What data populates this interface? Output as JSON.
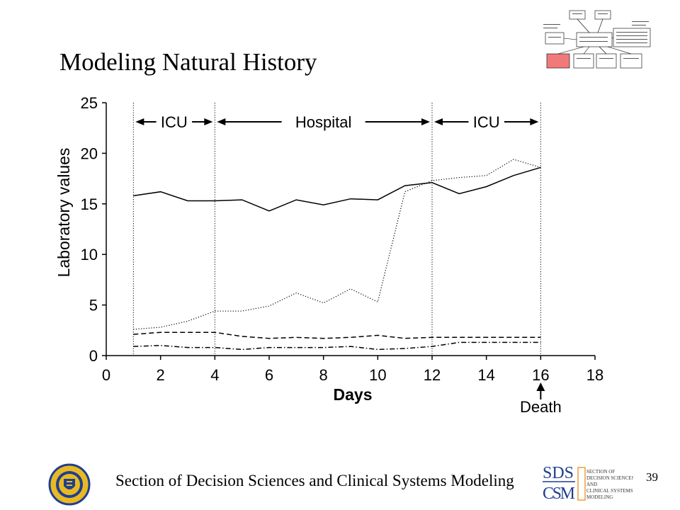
{
  "slide": {
    "title": "Modeling Natural History",
    "footer": "Section of Decision Sciences and Clinical Systems Modeling",
    "page_number": "39"
  },
  "logo": {
    "sds": "SDS",
    "csm": "CSM",
    "lines": [
      "SECTION OF",
      "DECISION SCIENCES",
      "AND",
      "CLINICAL SYSTEMS",
      "MODELING"
    ]
  },
  "colors": {
    "highlight_box": "#f07a7a",
    "seal_gold": "#e8b923",
    "seal_blue": "#1f3f8f",
    "logo_blue": "#1f3f8f",
    "logo_orange": "#e8a13a"
  },
  "chart_data": {
    "type": "line",
    "title": "",
    "xlabel": "Days",
    "ylabel": "Laboratory values",
    "xlim": [
      0,
      18
    ],
    "ylim": [
      0,
      25
    ],
    "xticks": [
      0,
      2,
      4,
      6,
      8,
      10,
      12,
      14,
      16,
      18
    ],
    "yticks": [
      0,
      5,
      10,
      15,
      20,
      25
    ],
    "grid": false,
    "legend": "none",
    "x": [
      1,
      2,
      3,
      4,
      5,
      6,
      7,
      8,
      9,
      10,
      11,
      12,
      13,
      14,
      15,
      16
    ],
    "series": [
      {
        "style": "solid",
        "values": [
          15.8,
          16.2,
          15.3,
          15.3,
          15.4,
          14.3,
          15.4,
          14.9,
          15.5,
          15.4,
          16.8,
          17.1,
          16.0,
          16.7,
          17.8,
          18.6
        ]
      },
      {
        "style": "dotted",
        "values": [
          2.6,
          2.8,
          3.4,
          4.4,
          4.4,
          4.9,
          6.2,
          5.2,
          6.6,
          5.3,
          16.2,
          17.3,
          17.6,
          17.8,
          19.4,
          18.6
        ]
      },
      {
        "style": "dashed",
        "values": [
          2.1,
          2.3,
          2.3,
          2.3,
          1.9,
          1.7,
          1.8,
          1.7,
          1.8,
          2.0,
          1.7,
          1.8,
          1.8,
          1.8,
          1.8,
          1.8
        ]
      },
      {
        "style": "dash-dot",
        "values": [
          0.9,
          1.0,
          0.8,
          0.8,
          0.6,
          0.8,
          0.8,
          0.8,
          0.9,
          0.6,
          0.7,
          0.9,
          1.3,
          1.3,
          1.3,
          1.3
        ]
      }
    ],
    "phase_boundaries": [
      1,
      4,
      12,
      16
    ],
    "phases": [
      {
        "label": "ICU",
        "start": 1,
        "end": 4
      },
      {
        "label": "Hospital",
        "start": 4,
        "end": 12
      },
      {
        "label": "ICU",
        "start": 12,
        "end": 16
      }
    ],
    "annotations": [
      {
        "label": "Death",
        "x": 16
      }
    ]
  }
}
